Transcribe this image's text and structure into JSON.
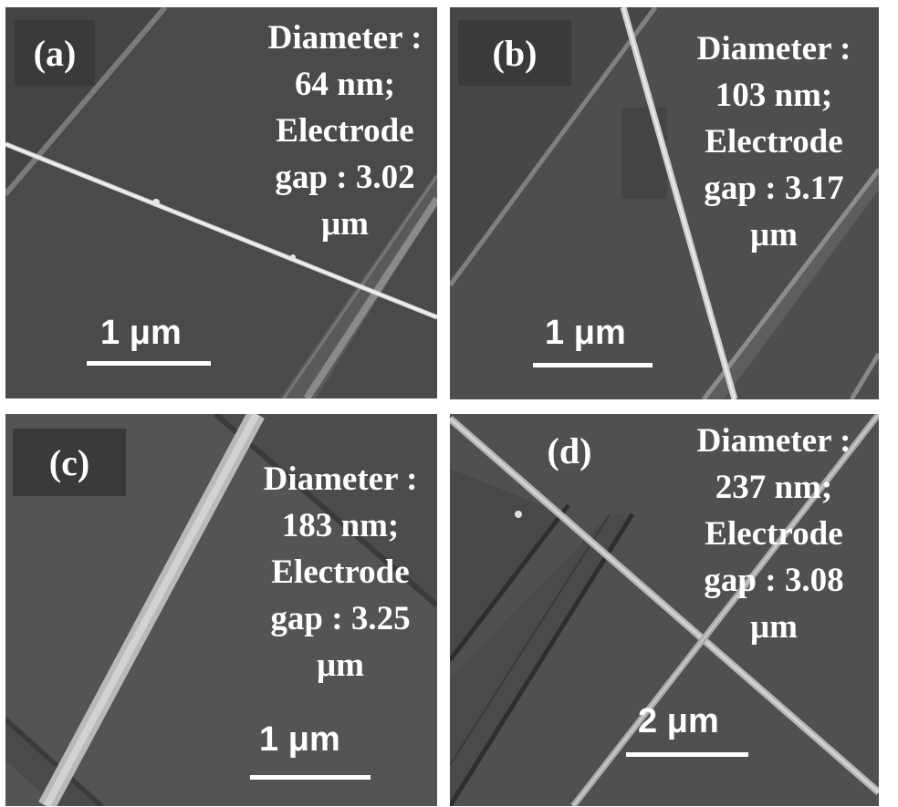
{
  "panels": [
    {
      "label": "(a)",
      "info": [
        "Diameter :",
        "64 nm;",
        "Electrode",
        "gap : 3.02",
        "μm"
      ],
      "scale_label": "1 μm"
    },
    {
      "label": "(b)",
      "info": [
        "Diameter :",
        "103 nm;",
        "Electrode",
        "gap : 3.17",
        "μm"
      ],
      "scale_label": "1 μm"
    },
    {
      "label": "(c)",
      "info": [
        "Diameter :",
        "183 nm;",
        "Electrode",
        "gap : 3.25",
        "μm"
      ],
      "scale_label": "1 μm"
    },
    {
      "label": "(d)",
      "info": [
        "Diameter :",
        "237 nm;",
        "Electrode",
        "gap : 3.08",
        "μm"
      ],
      "scale_label": "2 μm"
    }
  ],
  "colors": {
    "background": "#4d4d4d",
    "label_box": "#3a3a3a",
    "text": "#ffffff"
  }
}
